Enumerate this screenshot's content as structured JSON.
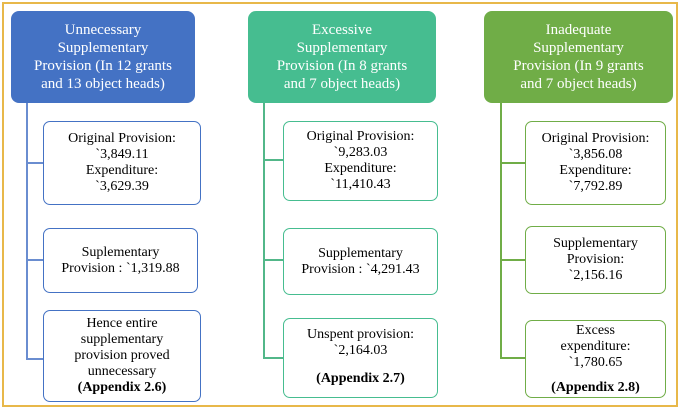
{
  "columns": [
    {
      "header": [
        "Unnecessary",
        "Supplementary",
        "Provision (In 12 grants",
        "and 13 object heads)"
      ],
      "boxes": [
        {
          "lines": [
            "Original Provision:",
            "`3,849.11",
            "Expenditure:",
            "`3,629.39"
          ]
        },
        {
          "lines": [
            "Suplementary",
            "Provision : `1,319.88"
          ]
        },
        {
          "lines": [
            "Hence entire",
            "supplementary",
            "provision proved",
            "unnecessary"
          ],
          "ref": "(Appendix 2.6)"
        }
      ]
    },
    {
      "header": [
        "Excessive",
        "Supplementary",
        "Provision (In 8 grants",
        "and 7 object heads)"
      ],
      "boxes": [
        {
          "lines": [
            "Original Provision:",
            "`9,283.03",
            "Expenditure:",
            "`11,410.43"
          ]
        },
        {
          "lines": [
            "Supplementary",
            "Provision : `4,291.43"
          ]
        },
        {
          "lines": [
            "Unspent provision:",
            "`2,164.03"
          ]
        }
      ],
      "footnote": "(Appendix 2.7)"
    },
    {
      "header": [
        "Inadequate",
        "Supplementary",
        "Provision (In 9 grants",
        "and 7 object heads)"
      ],
      "boxes": [
        {
          "lines": [
            "Original Provision:",
            "`3,856.08",
            "Expenditure:",
            "`7,792.89"
          ]
        },
        {
          "lines": [
            "Supplementary",
            "Provision:",
            "`2,156.16"
          ]
        },
        {
          "lines": [
            "Excess",
            "expenditure:",
            "`1,780.65"
          ]
        }
      ],
      "footnote": "(Appendix 2.8)"
    }
  ],
  "colors": {
    "col1_header": "#4472c4",
    "col2_header": "#46bd90",
    "col3_header": "#70ad47",
    "frame_border": "#e8b84a"
  }
}
